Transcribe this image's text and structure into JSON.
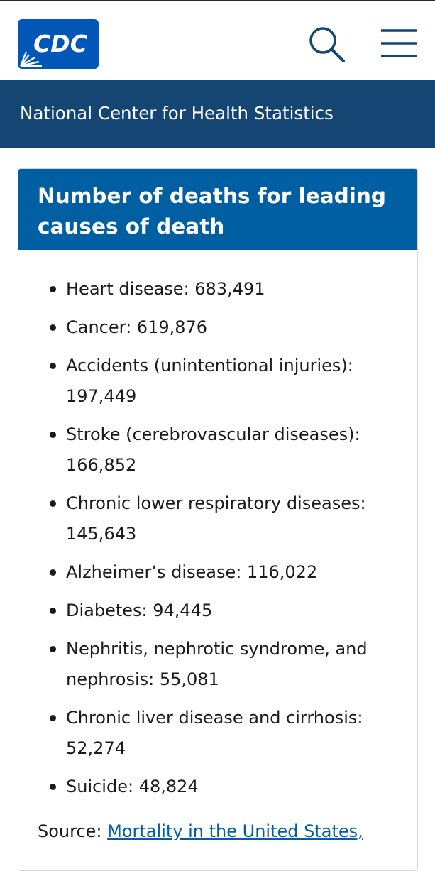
{
  "header": {
    "logo_text": "CDC",
    "brand_color": "#0057b7",
    "search_icon": "search-icon",
    "menu_icon": "hamburger-menu-icon"
  },
  "subheader": {
    "title": "National Center for Health Statistics",
    "background": "#144573"
  },
  "card": {
    "title": "Number of deaths for leading causes of death",
    "header_color": "#005ea2",
    "items": [
      {
        "label": "Heart disease: 683,491"
      },
      {
        "label": "Cancer: 619,876"
      },
      {
        "label": "Accidents (unintentional injuries): 197,449"
      },
      {
        "label": "Stroke (cerebrovascular diseases): 166,852"
      },
      {
        "label": "Chronic lower respiratory diseases: 145,643"
      },
      {
        "label": "Alzheimer’s disease: 116,022"
      },
      {
        "label": "Diabetes: 94,445"
      },
      {
        "label": "Nephritis, nephrotic syndrome, and nephrosis: 55,081"
      },
      {
        "label": "Chronic liver disease and cirrhosis: 52,274"
      },
      {
        "label": "Suicide: 48,824"
      }
    ],
    "source_prefix": "Source: ",
    "source_link": "Mortality in the United States,"
  }
}
